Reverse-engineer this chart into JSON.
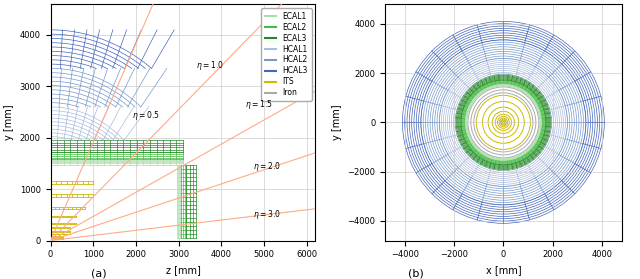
{
  "subplot_a_xlabel": "z [mm]",
  "subplot_a_ylabel": "y [mm]",
  "subplot_b_xlabel": "x [mm]",
  "subplot_b_ylabel": "y [mm]",
  "subplot_a_label": "(a)",
  "subplot_b_label": "(b)",
  "ecal1_color": "#aaddaa",
  "ecal2_color": "#44bb44",
  "ecal3_color": "#228822",
  "hcal1_color": "#aabbdd",
  "hcal2_color": "#7799cc",
  "hcal3_color": "#4466bb",
  "its_color": "#ccbb00",
  "iron_color": "#aaaaaa",
  "eta_color": "#ffaa88",
  "legend_labels": [
    "ECAL1",
    "ECAL2",
    "ECAL3",
    "HCAL1",
    "HCAL2",
    "HCAL3",
    "ITS",
    "Iron"
  ]
}
